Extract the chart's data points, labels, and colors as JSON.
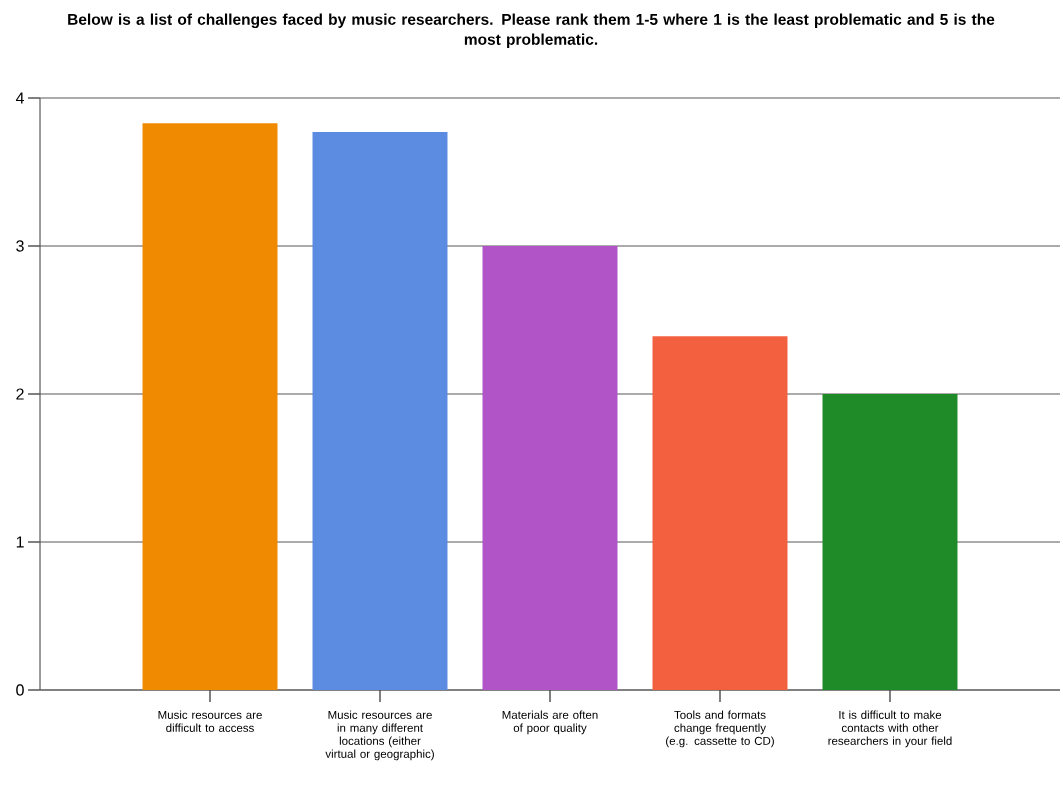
{
  "chart_data": {
    "type": "bar",
    "title": "Below is a list of challenges faced by music researchers. Please rank them 1-5 where 1 is the least problematic and 5 is the most problematic.",
    "categories": [
      "Music resources are difficult to access",
      "Music resources are in many different locations (either virtual or geographic)",
      "Materials are often of poor quality",
      "Tools and formats change frequently (e.g. cassette to CD)",
      "It is difficult to make contacts with other researchers in your field"
    ],
    "values": [
      3.83,
      3.77,
      3.0,
      2.39,
      2.0
    ],
    "colors": [
      "#f08a00",
      "#5b8ce2",
      "#b054c8",
      "#f2603f",
      "#1f8a28"
    ],
    "ylim": [
      0,
      4
    ],
    "yticks": [
      0,
      1,
      2,
      3,
      4
    ],
    "grid": "y"
  }
}
